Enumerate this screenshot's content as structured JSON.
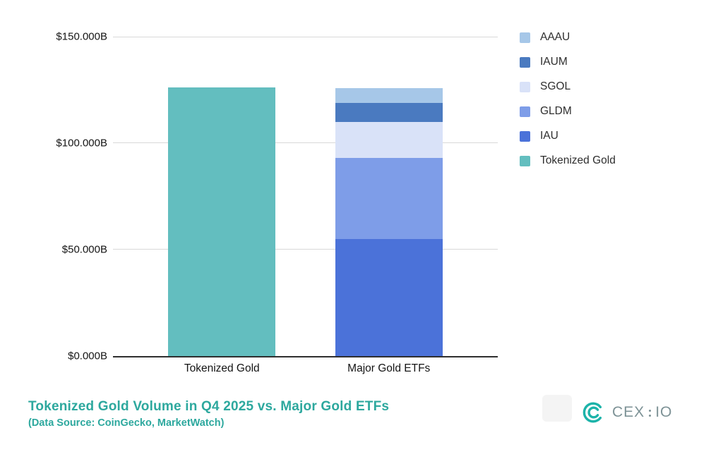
{
  "chart_data": {
    "type": "bar",
    "stacked": true,
    "title": "Tokenized Gold Volume in Q4 2025 vs. Major Gold ETFs",
    "subtitle": "(Data Source: CoinGecko, MarketWatch)",
    "units": "USD billions",
    "categories": [
      "Tokenized Gold",
      "Major Gold ETFs"
    ],
    "series": [
      {
        "name": "IAU",
        "color": "#4b72d9",
        "values": [
          0,
          55
        ]
      },
      {
        "name": "GLDM",
        "color": "#7e9de8",
        "values": [
          0,
          38
        ]
      },
      {
        "name": "SGOL",
        "color": "#d9e2f8",
        "values": [
          0,
          17
        ]
      },
      {
        "name": "IAUM",
        "color": "#4a7ac0",
        "values": [
          0,
          9
        ]
      },
      {
        "name": "AAAU",
        "color": "#a6c7e8",
        "values": [
          0,
          7
        ]
      },
      {
        "name": "Tokenized Gold",
        "color": "#63bebf",
        "values": [
          126,
          0
        ]
      }
    ],
    "totals": {
      "Tokenized Gold": 126,
      "Major Gold ETFs": 126
    },
    "legend": [
      {
        "label": "AAAU",
        "color": "#a6c7e8"
      },
      {
        "label": "IAUM",
        "color": "#4a7ac0"
      },
      {
        "label": "SGOL",
        "color": "#d9e2f8"
      },
      {
        "label": "GLDM",
        "color": "#7e9de8"
      },
      {
        "label": "IAU",
        "color": "#4b72d9"
      },
      {
        "label": "Tokenized Gold",
        "color": "#63bebf"
      }
    ],
    "legend_position": "top-right",
    "xlabel": "",
    "ylabel": "",
    "ylim": [
      0,
      150
    ],
    "y_ticks": [
      {
        "label": "$150.000B",
        "value": 150
      },
      {
        "label": "$100.000B",
        "value": 100
      },
      {
        "label": "$50.000B",
        "value": 50
      },
      {
        "label": "$0.000B",
        "value": 0
      }
    ],
    "grid": "horizontal"
  },
  "footer": {
    "title_color": "#2da89e"
  },
  "brand": {
    "name": "CEX",
    "suffix": "IO",
    "mark_color": "#1cb3a9",
    "text_color": "#7d9296"
  }
}
